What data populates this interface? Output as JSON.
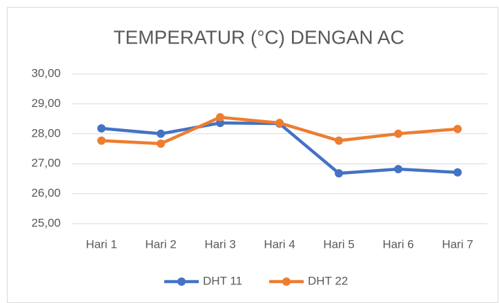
{
  "chart_data": {
    "type": "line",
    "title": "TEMPERATUR (°C) DENGAN AC",
    "categories": [
      "Hari 1",
      "Hari 2",
      "Hari 3",
      "Hari 4",
      "Hari 5",
      "Hari 6",
      "Hari 7"
    ],
    "series": [
      {
        "name": "DHT 11",
        "color": "#4472c4",
        "values": [
          28.18,
          28.0,
          28.36,
          28.34,
          26.68,
          26.82,
          26.71
        ]
      },
      {
        "name": "DHT 22",
        "color": "#ed7d31",
        "values": [
          27.77,
          27.67,
          28.55,
          28.36,
          27.77,
          28.0,
          28.16
        ]
      }
    ],
    "ylim": [
      25,
      30
    ],
    "yticks": [
      {
        "value": 25,
        "label": "25,00"
      },
      {
        "value": 26,
        "label": "26,00"
      },
      {
        "value": 27,
        "label": "27,00"
      },
      {
        "value": 28,
        "label": "28,00"
      },
      {
        "value": 29,
        "label": "29,00"
      },
      {
        "value": 30,
        "label": "30,00"
      }
    ],
    "grid": true,
    "legend": "bottom"
  }
}
